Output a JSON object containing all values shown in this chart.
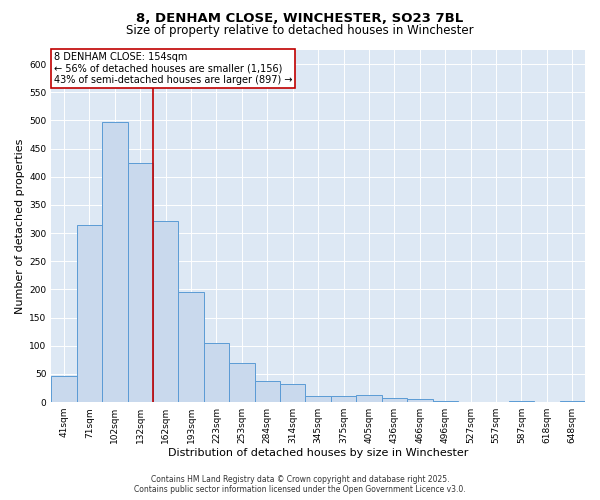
{
  "title1": "8, DENHAM CLOSE, WINCHESTER, SO23 7BL",
  "title2": "Size of property relative to detached houses in Winchester",
  "xlabel": "Distribution of detached houses by size in Winchester",
  "ylabel": "Number of detached properties",
  "categories": [
    "41sqm",
    "71sqm",
    "102sqm",
    "132sqm",
    "162sqm",
    "193sqm",
    "223sqm",
    "253sqm",
    "284sqm",
    "314sqm",
    "345sqm",
    "375sqm",
    "405sqm",
    "436sqm",
    "466sqm",
    "496sqm",
    "527sqm",
    "557sqm",
    "587sqm",
    "618sqm",
    "648sqm"
  ],
  "values": [
    47,
    314,
    497,
    424,
    321,
    196,
    105,
    70,
    38,
    33,
    11,
    10,
    12,
    7,
    5,
    2,
    0,
    0,
    2,
    0,
    2
  ],
  "bar_color": "#c9d9ed",
  "bar_edge_color": "#5b9bd5",
  "vline_position": 3.5,
  "vline_color": "#c00000",
  "annotation_title": "8 DENHAM CLOSE: 154sqm",
  "annotation_line1": "← 56% of detached houses are smaller (1,156)",
  "annotation_line2": "43% of semi-detached houses are larger (897) →",
  "annotation_box_edgecolor": "#c00000",
  "footer1": "Contains HM Land Registry data © Crown copyright and database right 2025.",
  "footer2": "Contains public sector information licensed under the Open Government Licence v3.0.",
  "ylim_max": 625,
  "yticks": [
    0,
    50,
    100,
    150,
    200,
    250,
    300,
    350,
    400,
    450,
    500,
    550,
    600
  ],
  "bg_color": "#dde8f4",
  "title1_fontsize": 9.5,
  "title2_fontsize": 8.5,
  "tick_fontsize": 6.5,
  "label_fontsize": 8,
  "ann_fontsize": 7,
  "footer_fontsize": 5.5
}
